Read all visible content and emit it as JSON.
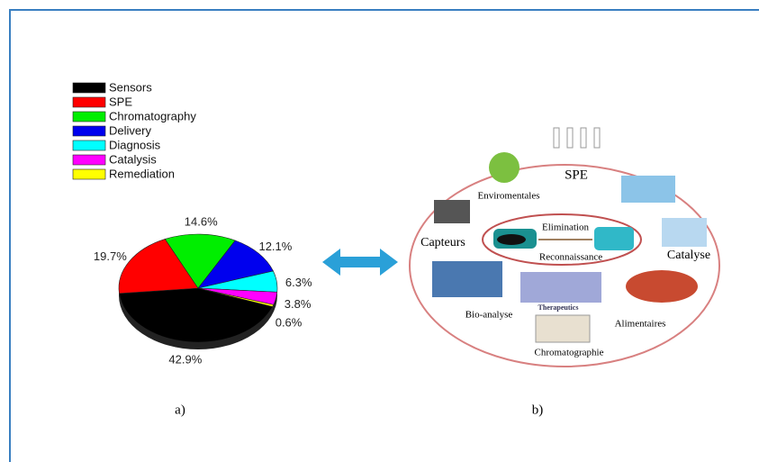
{
  "chart_data": {
    "type": "pie",
    "categories": [
      "Sensors",
      "SPE",
      "Chromatography",
      "Delivery",
      "Diagnosis",
      "Catalysis",
      "Remediation"
    ],
    "values": [
      42.9,
      19.7,
      14.6,
      12.1,
      6.3,
      3.8,
      0.6
    ],
    "value_labels": [
      "42.9%",
      "19.7%",
      "14.6%",
      "12.1%",
      "6.3%",
      "3.8%",
      "0.6%"
    ],
    "colors": [
      "#000000",
      "#ff0000",
      "#00ee00",
      "#0000ee",
      "#00ffff",
      "#ff00ff",
      "#ffff00"
    ],
    "legend": "top-left"
  },
  "diagram": {
    "labels": [
      "SPE",
      "Enviromentales",
      "Capteurs",
      "Elimination",
      "Reconnaissance",
      "Catalyse",
      "Bio-analyse",
      "Therapeutics",
      "Alimentaires",
      "Chromatographie"
    ]
  },
  "captions": [
    "a)",
    "b)"
  ]
}
